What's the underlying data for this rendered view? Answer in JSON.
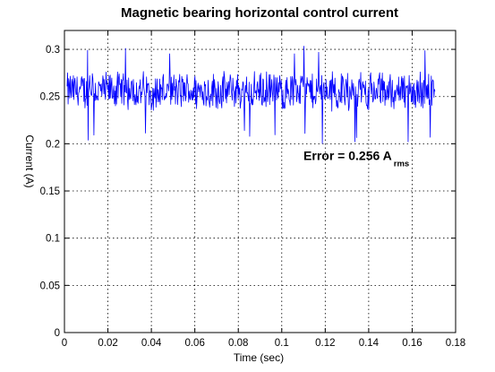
{
  "chart_data": {
    "type": "line",
    "title": "Magnetic bearing horizontal control current",
    "xlabel": "Time (sec)",
    "ylabel": "Current (A)",
    "xlim": [
      0,
      0.18
    ],
    "ylim": [
      0,
      0.32
    ],
    "xticks": [
      0,
      0.02,
      0.04,
      0.06,
      0.08,
      0.1,
      0.12,
      0.14,
      0.16,
      0.18
    ],
    "xtick_labels": [
      "0",
      "0.02",
      "0.04",
      "0.06",
      "0.08",
      "0.1",
      "0.12",
      "0.14",
      "0.16",
      "0.18"
    ],
    "yticks": [
      0,
      0.05,
      0.1,
      0.15,
      0.2,
      0.25,
      0.3
    ],
    "ytick_labels": [
      "0",
      "0.05",
      "0.1",
      "0.15",
      "0.2",
      "0.25",
      "0.3"
    ],
    "grid": true,
    "line_color": "#0000ff",
    "series": [
      {
        "name": "",
        "x_start": 0.0012,
        "x_end": 0.1705,
        "points": 700,
        "mean": 0.256,
        "typical_range": [
          0.235,
          0.28
        ],
        "min": 0.2,
        "max": 0.305
      }
    ],
    "annotations": [
      {
        "text": "Error = 0.256 A",
        "subscript": "rms",
        "x": 0.11,
        "y": 0.183
      }
    ]
  }
}
